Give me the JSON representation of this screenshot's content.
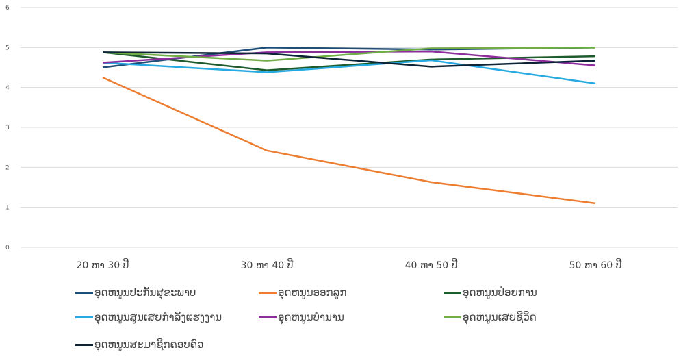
{
  "chart_data": {
    "type": "line",
    "title": "",
    "xlabel": "",
    "ylabel": "",
    "categories": [
      "20 ຫາ 30 ປີ",
      "30 ຫາ 40 ປີ",
      "40 ຫາ 50 ປີ",
      "50 ຫາ 60 ປີ"
    ],
    "ylim": [
      0,
      6
    ],
    "yticks": [
      "0",
      "1",
      "2",
      "3",
      "4",
      "5",
      "6"
    ],
    "grid": true,
    "legend_position": "bottom",
    "series": [
      {
        "name": "ອຸດຫນູນປະກັນສຸຂະພາບ",
        "color": "#1f4e79",
        "values": [
          4.5,
          5.0,
          4.95,
          5.0
        ]
      },
      {
        "name": "ອຸດຫນູນອອກລູກ",
        "color": "#ed7d31",
        "values": [
          4.25,
          2.42,
          1.63,
          1.1
        ]
      },
      {
        "name": "ອຸດຫນູນປ່ອຍການ",
        "color": "#1e5c2e",
        "values": [
          4.88,
          4.43,
          4.7,
          4.78
        ]
      },
      {
        "name": "ອຸດຫນູນສູນເສຍກຳລັງແຮງງານ",
        "color": "#27a9e1",
        "values": [
          4.62,
          4.38,
          4.68,
          4.1
        ]
      },
      {
        "name": "ອຸດຫນູນບຳນານ",
        "color": "#8e2d9c",
        "values": [
          4.62,
          4.88,
          4.9,
          4.55
        ]
      },
      {
        "name": "ອຸດຫນູນເສຍຊີວິດ",
        "color": "#70ad47",
        "values": [
          4.88,
          4.67,
          4.98,
          5.0
        ]
      },
      {
        "name": "ອຸດຫນູນສະມາຊິກຄອບຄົວ",
        "color": "#0d2436",
        "values": [
          4.88,
          4.85,
          4.52,
          4.67
        ]
      }
    ]
  }
}
